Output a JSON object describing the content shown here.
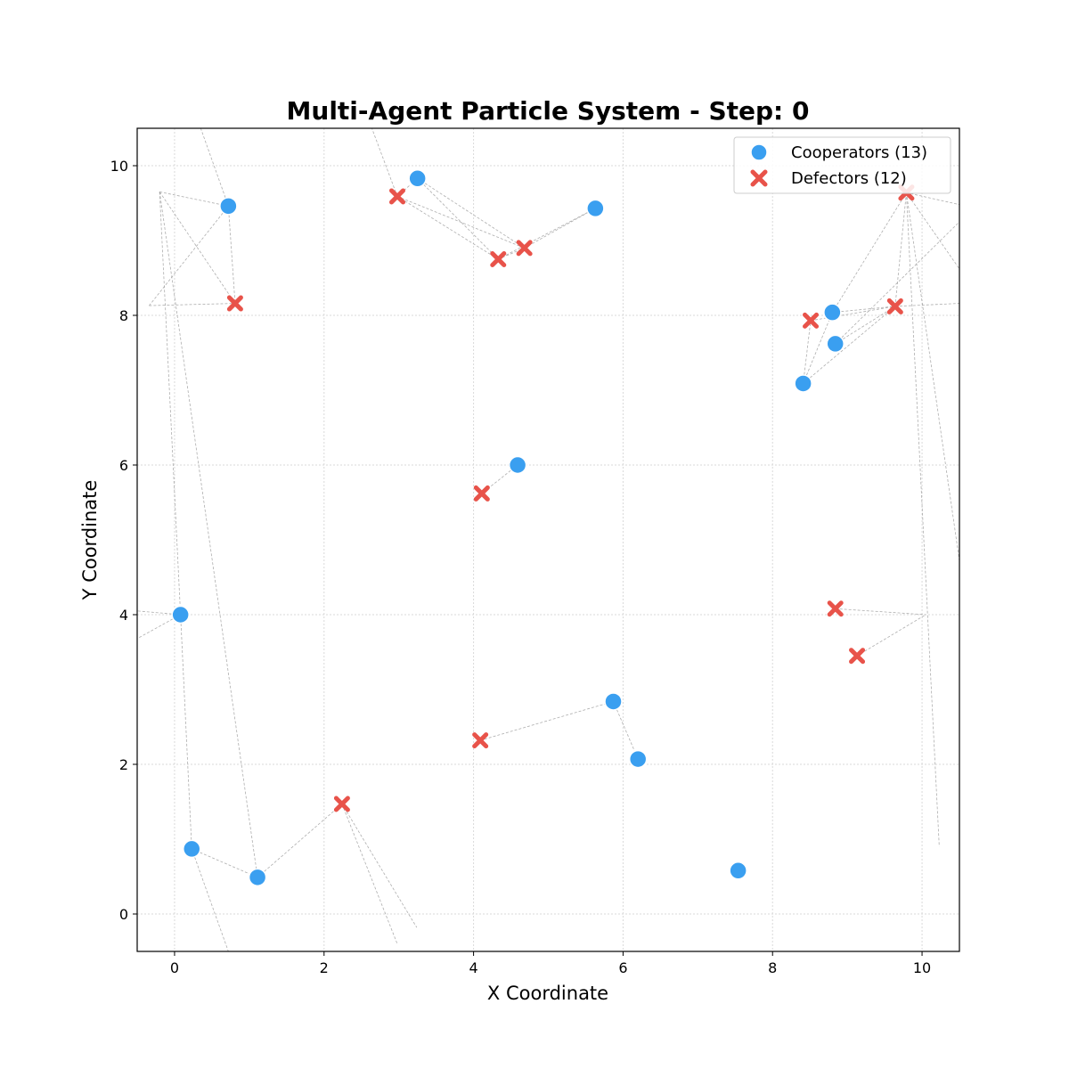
{
  "chart_data": {
    "type": "scatter",
    "title": "Multi-Agent Particle System - Step: 0",
    "xlabel": "X Coordinate",
    "ylabel": "Y Coordinate",
    "xlim": [
      -0.5,
      10.5
    ],
    "ylim": [
      -0.5,
      10.5
    ],
    "xticks": [
      "0",
      "2",
      "4",
      "6",
      "8",
      "10"
    ],
    "yticks": [
      "0",
      "2",
      "4",
      "6",
      "8",
      "10"
    ],
    "grid": true,
    "legend_position": "top-right",
    "series": [
      {
        "name": "Cooperators (13)",
        "marker": "circle",
        "color": "#3a9ff0",
        "points": [
          [
            0.72,
            9.46
          ],
          [
            3.25,
            9.83
          ],
          [
            5.63,
            9.43
          ],
          [
            8.8,
            8.04
          ],
          [
            8.84,
            7.62
          ],
          [
            8.41,
            7.09
          ],
          [
            4.59,
            6.0
          ],
          [
            0.08,
            4.0
          ],
          [
            5.87,
            2.84
          ],
          [
            6.2,
            2.07
          ],
          [
            0.23,
            0.87
          ],
          [
            1.11,
            0.49
          ],
          [
            7.54,
            0.58
          ]
        ]
      },
      {
        "name": "Defectors (12)",
        "marker": "x",
        "color": "#e8534a",
        "points": [
          [
            0.81,
            8.16
          ],
          [
            2.98,
            9.59
          ],
          [
            4.33,
            8.75
          ],
          [
            4.68,
            8.9
          ],
          [
            8.51,
            7.93
          ],
          [
            9.64,
            8.12
          ],
          [
            9.79,
            9.64
          ],
          [
            4.11,
            5.62
          ],
          [
            8.84,
            4.08
          ],
          [
            9.13,
            3.45
          ],
          [
            4.09,
            2.32
          ],
          [
            2.24,
            1.47
          ]
        ]
      }
    ],
    "connections": [
      [
        [
          0.72,
          9.46
        ],
        [
          0.81,
          8.16
        ]
      ],
      [
        [
          0.72,
          9.46
        ],
        [
          -0.34,
          8.13
        ]
      ],
      [
        [
          0.72,
          9.46
        ],
        [
          0.35,
          10.5
        ]
      ],
      [
        [
          -0.2,
          9.65
        ],
        [
          0.81,
          8.16
        ]
      ],
      [
        [
          -0.2,
          9.65
        ],
        [
          0.72,
          9.46
        ]
      ],
      [
        [
          -0.34,
          8.13
        ],
        [
          0.81,
          8.16
        ]
      ],
      [
        [
          -0.2,
          9.65
        ],
        [
          0.08,
          4.0
        ]
      ],
      [
        [
          -0.2,
          9.65
        ],
        [
          1.11,
          0.49
        ]
      ],
      [
        [
          0.08,
          4.0
        ],
        [
          -0.5,
          3.68
        ]
      ],
      [
        [
          0.08,
          4.0
        ],
        [
          -0.5,
          4.05
        ]
      ],
      [
        [
          0.08,
          4.0
        ],
        [
          0.23,
          0.87
        ]
      ],
      [
        [
          0.23,
          0.87
        ],
        [
          0.72,
          -0.5
        ]
      ],
      [
        [
          0.23,
          0.87
        ],
        [
          1.11,
          0.49
        ]
      ],
      [
        [
          1.11,
          0.49
        ],
        [
          2.24,
          1.47
        ]
      ],
      [
        [
          2.24,
          1.47
        ],
        [
          2.98,
          -0.4
        ]
      ],
      [
        [
          2.24,
          1.47
        ],
        [
          3.24,
          -0.18
        ]
      ],
      [
        [
          2.98,
          9.59
        ],
        [
          3.25,
          9.83
        ]
      ],
      [
        [
          2.98,
          9.59
        ],
        [
          4.33,
          8.75
        ]
      ],
      [
        [
          2.98,
          9.59
        ],
        [
          4.68,
          8.9
        ]
      ],
      [
        [
          2.98,
          9.59
        ],
        [
          2.64,
          10.5
        ]
      ],
      [
        [
          3.25,
          9.83
        ],
        [
          4.33,
          8.75
        ]
      ],
      [
        [
          3.25,
          9.83
        ],
        [
          4.68,
          8.9
        ]
      ],
      [
        [
          4.33,
          8.75
        ],
        [
          4.68,
          8.9
        ]
      ],
      [
        [
          4.33,
          8.75
        ],
        [
          5.63,
          9.43
        ]
      ],
      [
        [
          4.68,
          8.9
        ],
        [
          5.63,
          9.43
        ]
      ],
      [
        [
          4.59,
          6.0
        ],
        [
          4.11,
          5.62
        ]
      ],
      [
        [
          4.09,
          2.32
        ],
        [
          5.87,
          2.84
        ]
      ],
      [
        [
          5.87,
          2.84
        ],
        [
          6.2,
          2.07
        ]
      ],
      [
        [
          8.41,
          7.09
        ],
        [
          8.51,
          7.93
        ]
      ],
      [
        [
          8.41,
          7.09
        ],
        [
          8.8,
          8.04
        ]
      ],
      [
        [
          8.41,
          7.09
        ],
        [
          9.64,
          8.12
        ]
      ],
      [
        [
          8.8,
          8.04
        ],
        [
          9.64,
          8.12
        ]
      ],
      [
        [
          8.8,
          8.04
        ],
        [
          9.79,
          9.64
        ]
      ],
      [
        [
          8.84,
          7.62
        ],
        [
          9.64,
          8.12
        ]
      ],
      [
        [
          8.84,
          7.62
        ],
        [
          10.5,
          9.25
        ]
      ],
      [
        [
          8.51,
          7.93
        ],
        [
          9.64,
          8.12
        ]
      ],
      [
        [
          9.64,
          8.12
        ],
        [
          9.79,
          9.64
        ]
      ],
      [
        [
          9.64,
          8.12
        ],
        [
          10.5,
          8.16
        ]
      ],
      [
        [
          9.79,
          9.64
        ],
        [
          10.5,
          9.48
        ]
      ],
      [
        [
          9.79,
          9.64
        ],
        [
          10.5,
          8.62
        ]
      ],
      [
        [
          9.79,
          9.64
        ],
        [
          10.23,
          0.9
        ]
      ],
      [
        [
          9.79,
          9.64
        ],
        [
          10.5,
          4.72
        ]
      ],
      [
        [
          8.84,
          4.08
        ],
        [
          10.05,
          4.0
        ]
      ],
      [
        [
          9.13,
          3.45
        ],
        [
          10.05,
          4.0
        ]
      ]
    ]
  },
  "legend": {
    "cooperators_label": "Cooperators (13)",
    "defectors_label": "Defectors (12)"
  }
}
